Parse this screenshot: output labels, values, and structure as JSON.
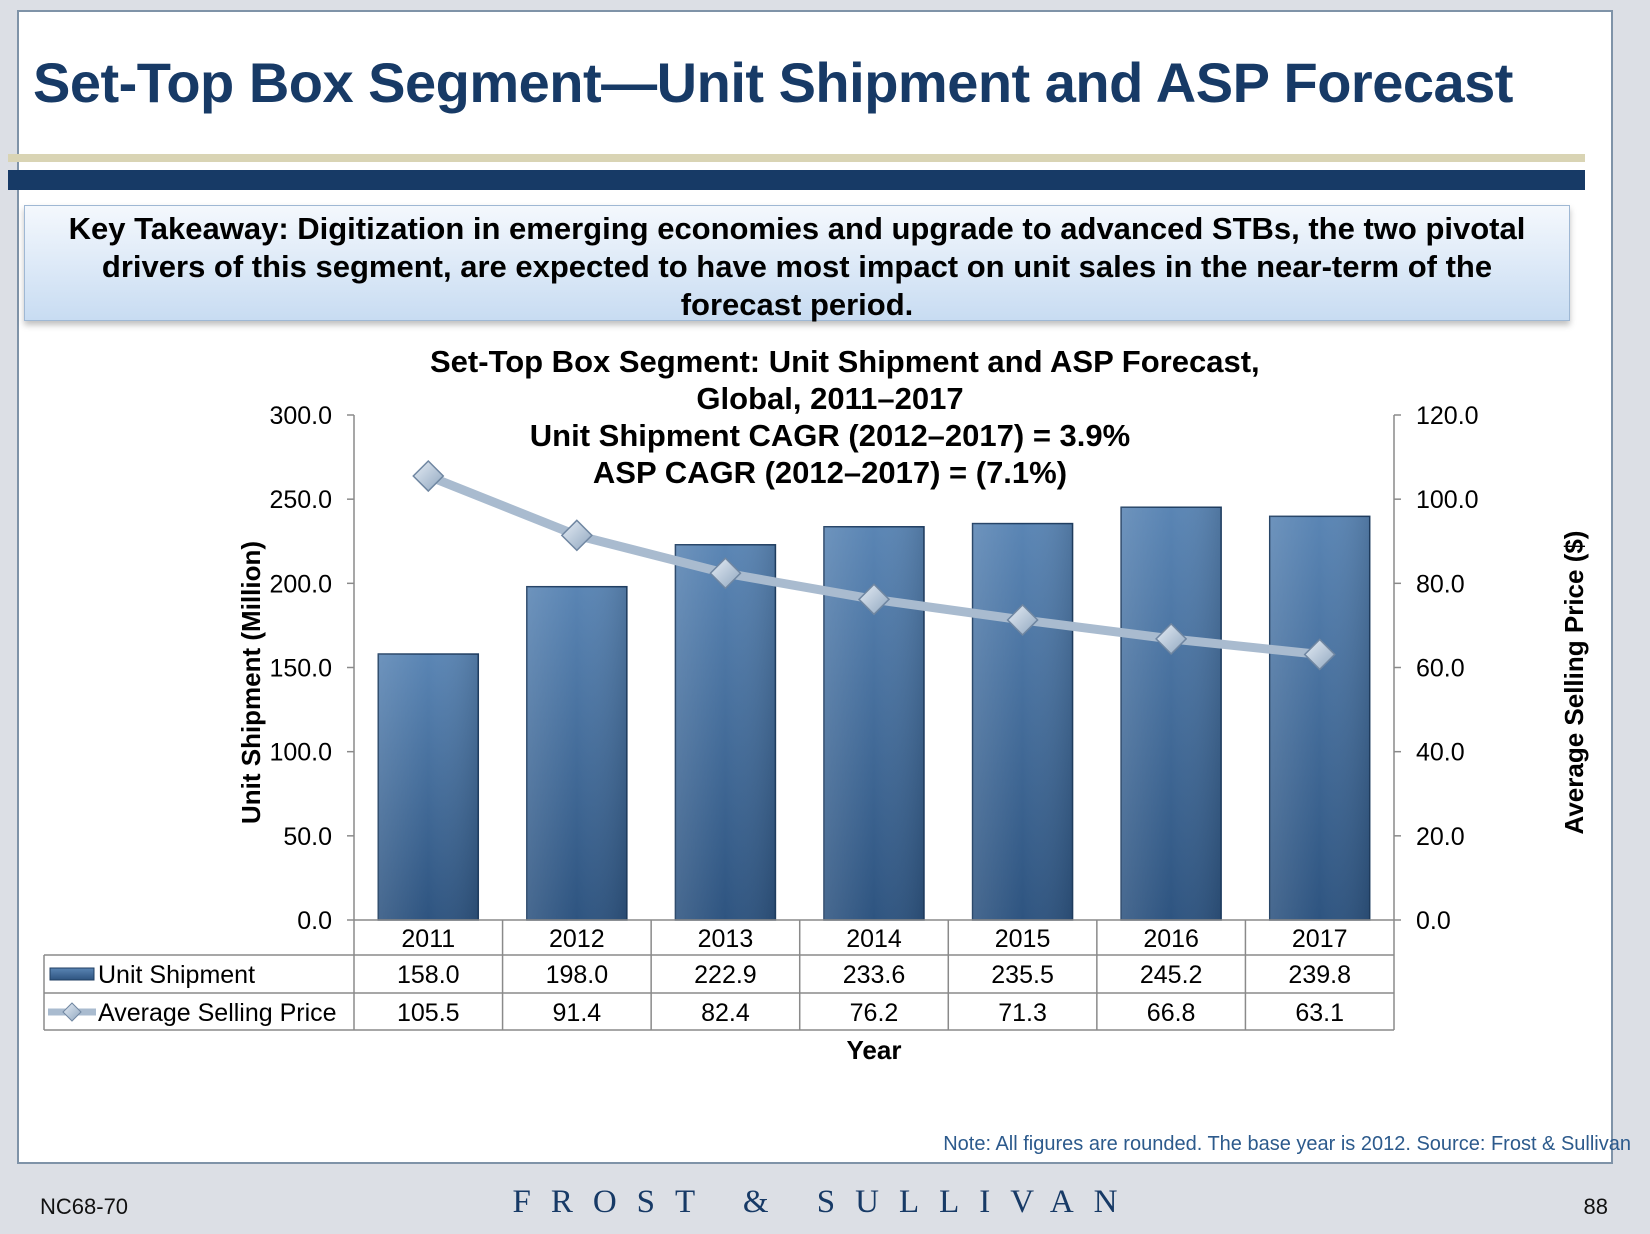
{
  "slide": {
    "title": "Set-Top Box Segment—Unit Shipment and ASP Forecast",
    "takeaway_lines": [
      "Key Takeaway: Digitization in emerging economies and upgrade to advanced STBs, the two pivotal",
      "drivers of this segment, are expected to have most impact on unit sales in the near-term of the",
      "forecast period."
    ],
    "note": "Note: All figures are rounded. The base year is 2012. Source: Frost & Sullivan",
    "footer": {
      "code": "NC68-70",
      "logo_text": "FROST & SULLIVAN",
      "page_number": "88"
    }
  },
  "chart_data": {
    "type": "bar",
    "title_lines": [
      "Set-Top Box Segment: Unit Shipment and ASP Forecast,",
      "Global, 2011–2017",
      "Unit  Shipment CAGR (2012–2017) = 3.9%",
      "ASP CAGR (2012–2017) = (7.1%)"
    ],
    "categories": [
      "2011",
      "2012",
      "2013",
      "2014",
      "2015",
      "2016",
      "2017"
    ],
    "series": [
      {
        "name": "Unit Shipment",
        "type": "bar",
        "axis": "left",
        "values": [
          158.0,
          198.0,
          222.9,
          233.6,
          235.5,
          245.2,
          239.8
        ],
        "labels": [
          "158.0",
          "198.0",
          "222.9",
          "233.6",
          "235.5",
          "245.2",
          "239.8"
        ],
        "color": "#3f6a99"
      },
      {
        "name": "Average Selling Price",
        "type": "line",
        "axis": "right",
        "values": [
          105.5,
          91.4,
          82.4,
          76.2,
          71.3,
          66.8,
          63.1
        ],
        "labels": [
          "105.5",
          "91.4",
          "82.4",
          "76.2",
          "71.3",
          "66.8",
          "63.1"
        ],
        "color": "#a9bbcf"
      }
    ],
    "xlabel": "Year",
    "ylabel": "Unit Shipment (Million)",
    "ylabel_right": "Average Selling Price ($)",
    "ylim": [
      0,
      300
    ],
    "ylim_right": [
      0,
      120
    ],
    "yticks": [
      "0.0",
      "50.0",
      "100.0",
      "150.0",
      "200.0",
      "250.0",
      "300.0"
    ],
    "yticks_right": [
      "0.0",
      "20.0",
      "40.0",
      "60.0",
      "80.0",
      "100.0",
      "120.0"
    ],
    "grid": false,
    "legend": "data-table"
  }
}
